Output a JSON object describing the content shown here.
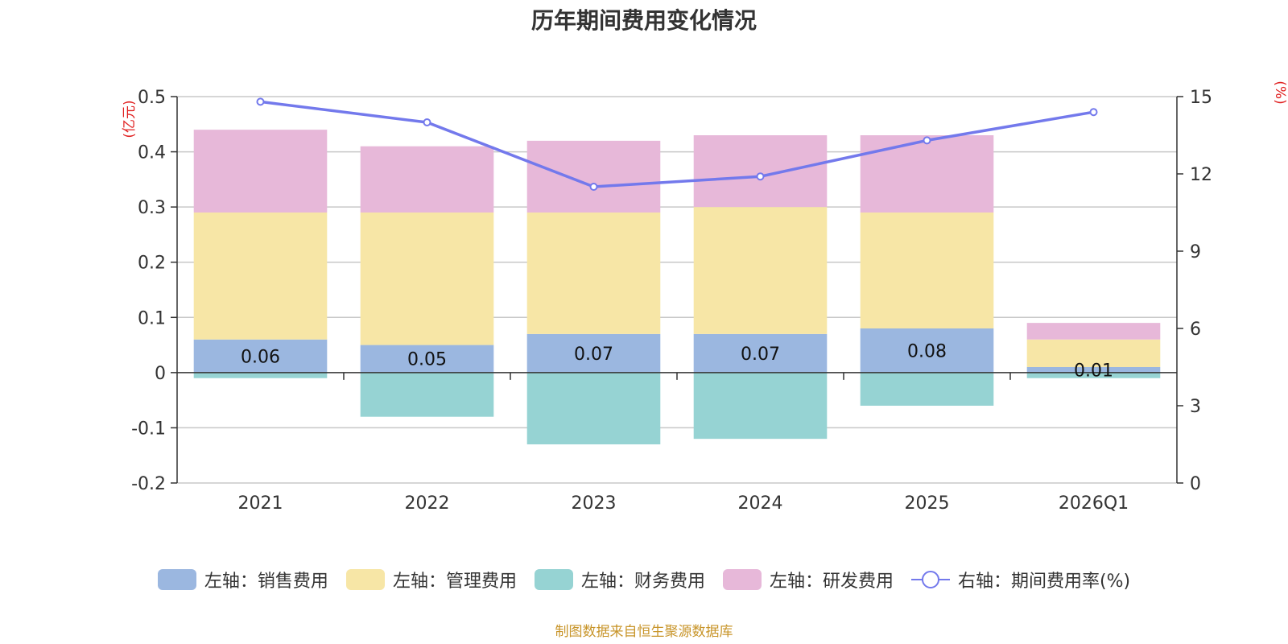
{
  "chart_data": {
    "type": "bar",
    "title": "历年期间费用变化情况",
    "categories": [
      "2021",
      "2022",
      "2023",
      "2024",
      "2025",
      "2026Q1"
    ],
    "left_axis": {
      "unit": "(亿元)",
      "ylim": [
        -0.2,
        0.5
      ],
      "ticks": [
        "0.5",
        "0.4",
        "0.3",
        "0.2",
        "0.1",
        "0",
        "-0.1",
        "-0.2"
      ]
    },
    "right_axis": {
      "unit": "(%)",
      "ylim": [
        0,
        15
      ],
      "ticks": [
        "15",
        "12",
        "9",
        "6",
        "3",
        "0"
      ]
    },
    "series": [
      {
        "name": "左轴：销售费用",
        "kind": "bar",
        "color": "#9bb7e0",
        "values": [
          0.06,
          0.05,
          0.07,
          0.07,
          0.08,
          0.01
        ],
        "labels": [
          "0.06",
          "0.05",
          "0.07",
          "0.07",
          "0.08",
          "0.01"
        ]
      },
      {
        "name": "左轴：管理费用",
        "kind": "bar",
        "color": "#f7e6a6",
        "values": [
          0.23,
          0.24,
          0.22,
          0.23,
          0.21,
          0.05
        ]
      },
      {
        "name": "左轴：财务费用",
        "kind": "bar",
        "color": "#96d3d3",
        "values": [
          -0.01,
          -0.08,
          -0.13,
          -0.12,
          -0.06,
          -0.01
        ]
      },
      {
        "name": "左轴：研发费用",
        "kind": "bar",
        "color": "#e7b8d9",
        "values": [
          0.15,
          0.12,
          0.13,
          0.13,
          0.14,
          0.03
        ]
      },
      {
        "name": "右轴：期间费用率(%)",
        "kind": "line",
        "color": "#7379ec",
        "values": [
          14.8,
          14.0,
          11.5,
          11.9,
          13.3,
          14.4
        ]
      }
    ]
  },
  "source_note": "制图数据来自恒生聚源数据库"
}
